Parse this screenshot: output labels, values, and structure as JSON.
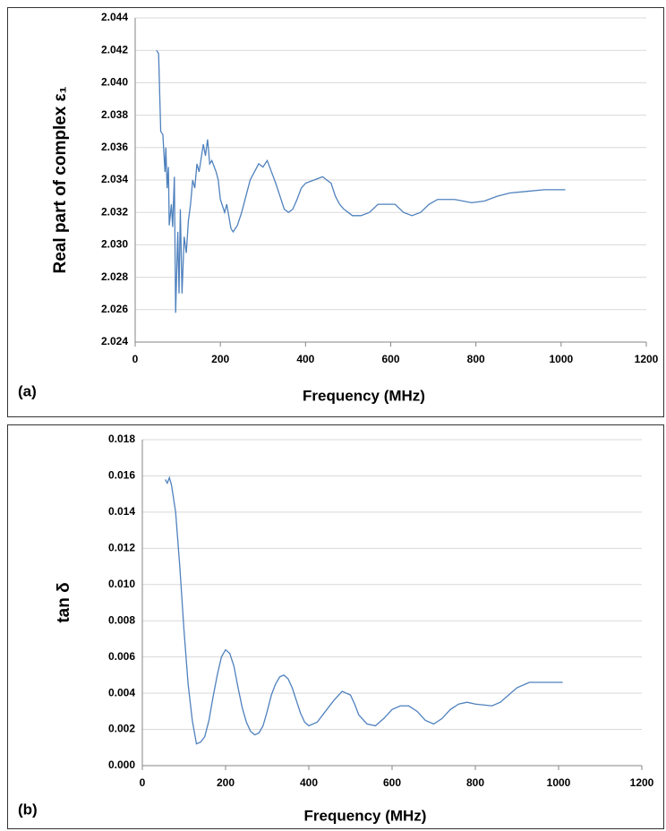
{
  "chart_data": [
    {
      "type": "line",
      "annotation": "(a)",
      "xlabel": "Frequency (MHz)",
      "ylabel": "Real part of complex ε₁",
      "xlim": [
        0,
        1200
      ],
      "xticks": [
        0,
        200,
        400,
        600,
        800,
        1000,
        1200
      ],
      "ylim": [
        2.024,
        2.044
      ],
      "yticks": [
        2.024,
        2.026,
        2.028,
        {
          "value": 2.03,
          "label": "2.030"
        },
        2.032,
        2.034,
        2.036,
        2.038,
        {
          "value": 2.04,
          "label": "2.040"
        },
        2.042,
        2.044
      ],
      "grid": true,
      "series": [
        {
          "color": "#4f81bd",
          "x": [
            50,
            55,
            60,
            65,
            70,
            72,
            75,
            78,
            80,
            85,
            88,
            92,
            95,
            100,
            103,
            106,
            110,
            115,
            120,
            125,
            130,
            135,
            140,
            145,
            150,
            160,
            165,
            170,
            175,
            180,
            190,
            195,
            200,
            210,
            215,
            225,
            230,
            240,
            250,
            260,
            270,
            280,
            290,
            300,
            310,
            320,
            330,
            340,
            350,
            360,
            370,
            380,
            390,
            400,
            420,
            440,
            450,
            460,
            470,
            480,
            490,
            500,
            510,
            530,
            550,
            570,
            590,
            610,
            630,
            650,
            670,
            690,
            710,
            750,
            790,
            820,
            850,
            880,
            920,
            960,
            1010
          ],
          "values": [
            2.042,
            2.0418,
            2.037,
            2.0368,
            2.0345,
            2.036,
            2.0335,
            2.0348,
            2.0312,
            2.0325,
            2.0311,
            2.0342,
            2.0258,
            2.0308,
            2.027,
            2.0322,
            2.027,
            2.0305,
            2.0295,
            2.0315,
            2.0325,
            2.034,
            2.0335,
            2.035,
            2.0345,
            2.0362,
            2.0355,
            2.0365,
            2.035,
            2.0352,
            2.0345,
            2.034,
            2.0328,
            2.032,
            2.0325,
            2.031,
            2.0308,
            2.0312,
            2.032,
            2.033,
            2.034,
            2.0345,
            2.035,
            2.0348,
            2.0352,
            2.0345,
            2.0338,
            2.033,
            2.0322,
            2.032,
            2.0322,
            2.0328,
            2.0335,
            2.0338,
            2.034,
            2.0342,
            2.034,
            2.0338,
            2.033,
            2.0325,
            2.0322,
            2.032,
            2.0318,
            2.0318,
            2.032,
            2.0325,
            2.0325,
            2.0325,
            2.032,
            2.0318,
            2.032,
            2.0325,
            2.0328,
            2.0328,
            2.0326,
            2.0327,
            2.033,
            2.0332,
            2.0333,
            2.0334,
            2.0334
          ]
        }
      ]
    },
    {
      "type": "line",
      "annotation": "(b)",
      "xlabel": "Frequency (MHz)",
      "ylabel": "tan δ",
      "xlim": [
        0,
        1200
      ],
      "xticks": [
        0,
        200,
        400,
        600,
        800,
        1000,
        1200
      ],
      "ylim": [
        0,
        0.018
      ],
      "yticks": [
        {
          "value": 0,
          "label": "0.000"
        },
        0.002,
        0.004,
        0.006,
        0.008,
        {
          "value": 0.01,
          "label": "0.010"
        },
        0.012,
        0.014,
        0.016,
        0.018
      ],
      "grid": true,
      "series": [
        {
          "color": "#4f81bd",
          "x": [
            55,
            60,
            65,
            70,
            80,
            90,
            100,
            110,
            120,
            130,
            140,
            150,
            160,
            170,
            180,
            190,
            200,
            210,
            220,
            230,
            240,
            250,
            260,
            270,
            280,
            290,
            300,
            310,
            320,
            330,
            340,
            350,
            360,
            370,
            380,
            390,
            400,
            420,
            440,
            460,
            480,
            500,
            510,
            520,
            540,
            560,
            580,
            600,
            620,
            640,
            660,
            680,
            700,
            720,
            740,
            760,
            780,
            800,
            840,
            860,
            880,
            900,
            930,
            1010
          ],
          "values": [
            0.0158,
            0.0156,
            0.0159,
            0.0155,
            0.014,
            0.011,
            0.0075,
            0.0045,
            0.0025,
            0.0012,
            0.0013,
            0.0016,
            0.0025,
            0.0038,
            0.005,
            0.006,
            0.0064,
            0.0062,
            0.0055,
            0.0043,
            0.0032,
            0.0024,
            0.0019,
            0.0017,
            0.0018,
            0.0022,
            0.003,
            0.0039,
            0.0045,
            0.0049,
            0.005,
            0.0048,
            0.0043,
            0.0036,
            0.0029,
            0.0024,
            0.0022,
            0.0024,
            0.003,
            0.0036,
            0.0041,
            0.0039,
            0.0034,
            0.0028,
            0.0023,
            0.0022,
            0.0026,
            0.0031,
            0.0033,
            0.0033,
            0.003,
            0.0025,
            0.0023,
            0.0026,
            0.0031,
            0.0034,
            0.0035,
            0.0034,
            0.0033,
            0.0035,
            0.0039,
            0.0043,
            0.0046,
            0.0046
          ]
        }
      ]
    }
  ]
}
